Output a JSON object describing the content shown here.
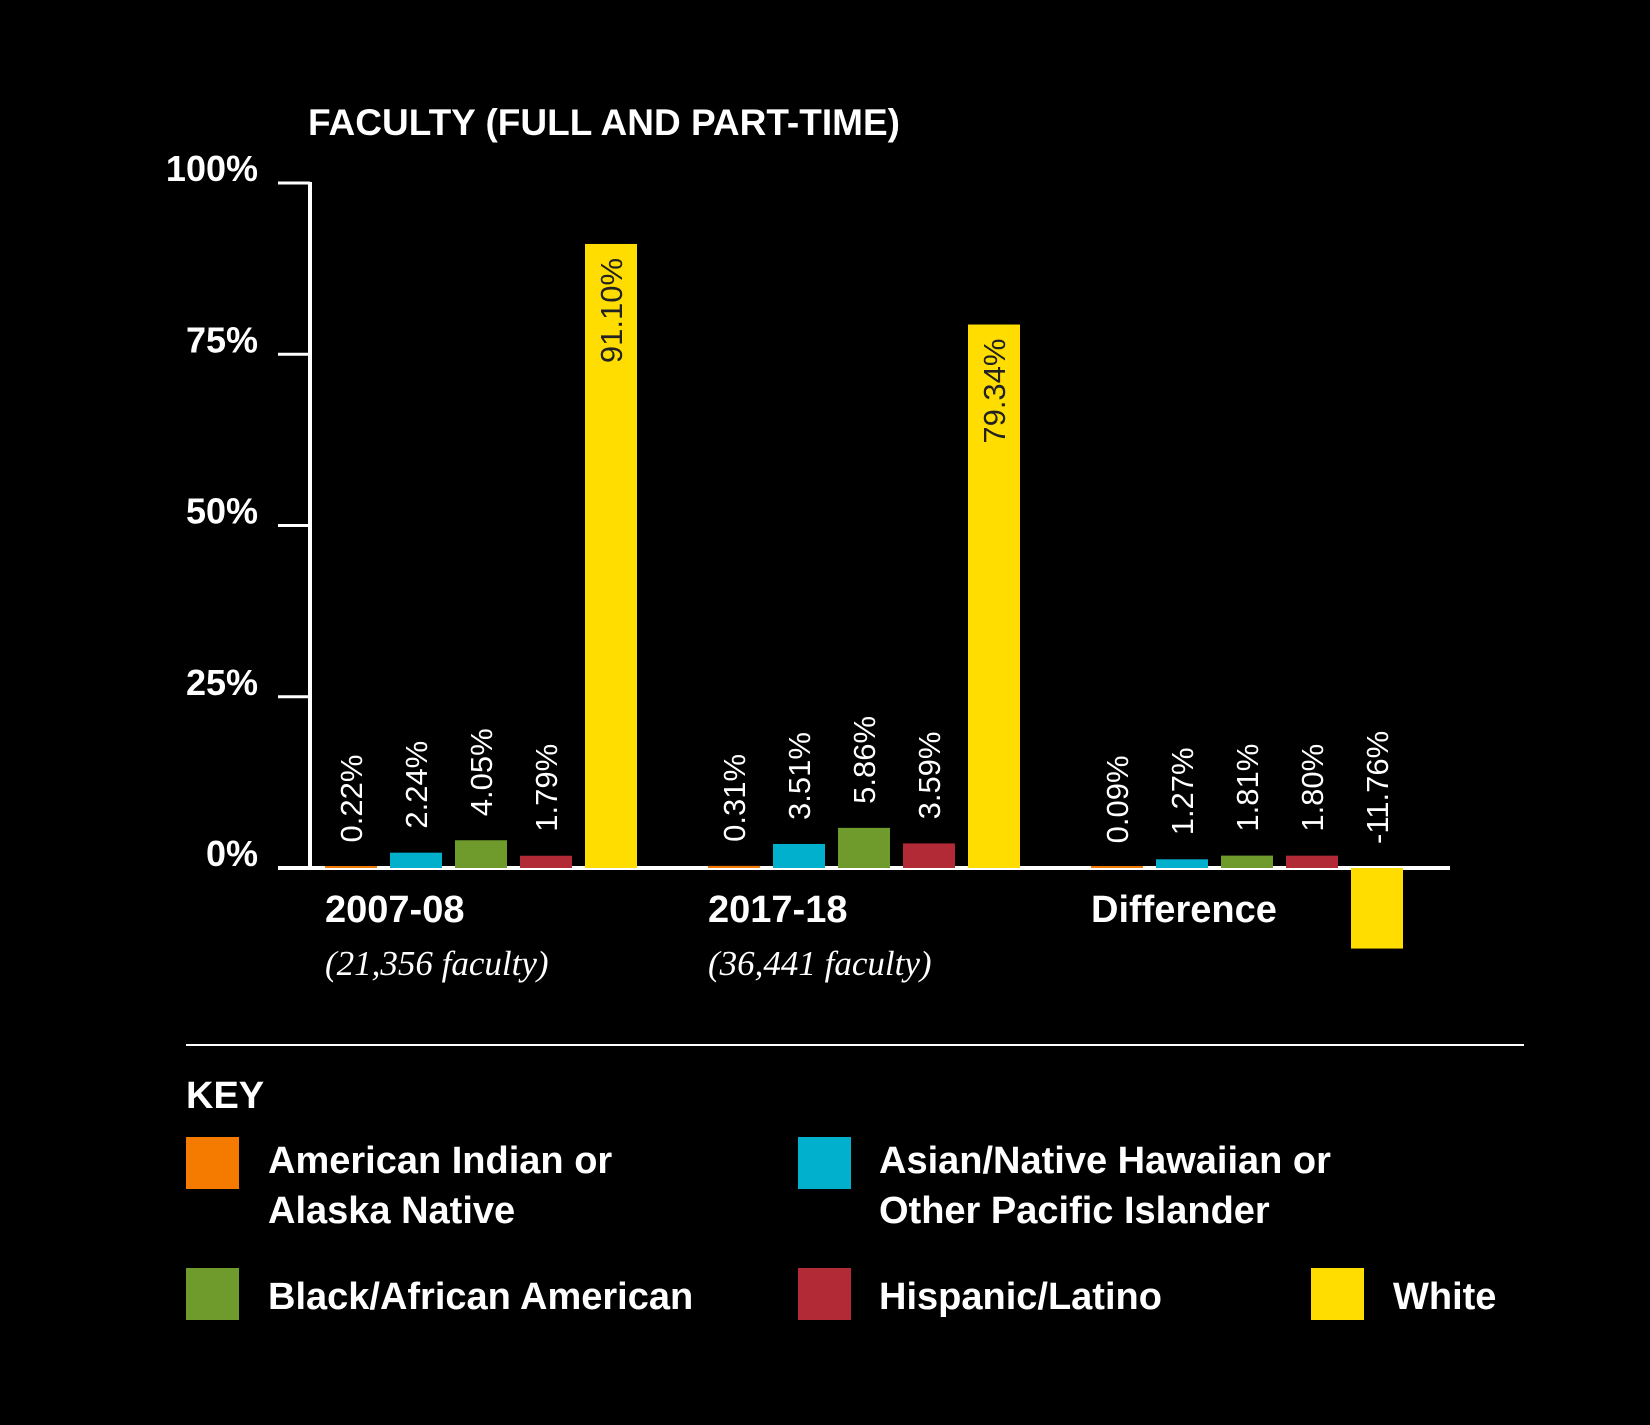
{
  "chart_data": {
    "type": "bar",
    "title": "FACULTY (FULL AND PART-TIME)",
    "ylim": [
      0,
      100
    ],
    "yticks": [
      "100%",
      "75%",
      "50%",
      "25%",
      "0%"
    ],
    "ytick_values": [
      100,
      75,
      50,
      25,
      0
    ],
    "grid": false,
    "categories": [
      "2007-08",
      "2017-18",
      "Difference"
    ],
    "category_subtitles": [
      "(21,356 faculty)",
      "(36,441 faculty)",
      ""
    ],
    "series": [
      {
        "name": "American Indian or Alaska Native",
        "color": "#f47b00",
        "values": [
          0.22,
          0.31,
          0.09
        ],
        "labels": [
          "0.22%",
          "0.31%",
          "0.09%"
        ]
      },
      {
        "name": "Asian/Native Hawaiian or Other Pacific Islander",
        "color": "#00b0cc",
        "values": [
          2.24,
          3.51,
          1.27
        ],
        "labels": [
          "2.24%",
          "3.51%",
          "1.27%"
        ]
      },
      {
        "name": "Black/African American",
        "color": "#6e9b2c",
        "values": [
          4.05,
          5.86,
          1.81
        ],
        "labels": [
          "4.05%",
          "5.86%",
          "1.81%"
        ]
      },
      {
        "name": "Hispanic/Latino",
        "color": "#b22a35",
        "values": [
          1.79,
          3.59,
          1.8
        ],
        "labels": [
          "1.79%",
          "3.59%",
          "1.80%"
        ]
      },
      {
        "name": "White",
        "color": "#ffdd00",
        "values": [
          91.1,
          79.34,
          -11.76
        ],
        "labels": [
          "91.10%",
          "79.34%",
          "-11.76%"
        ]
      }
    ],
    "legend": {
      "title": "KEY",
      "placement": "bottom",
      "entries": [
        {
          "lines": [
            "American Indian or",
            "Alaska Native"
          ],
          "color": "#f47b00"
        },
        {
          "lines": [
            "Asian/Native Hawaiian or",
            "Other Pacific Islander"
          ],
          "color": "#00b0cc"
        },
        {
          "lines": [
            "Black/African American"
          ],
          "color": "#6e9b2c"
        },
        {
          "lines": [
            "Hispanic/Latino"
          ],
          "color": "#b22a35"
        },
        {
          "lines": [
            "White"
          ],
          "color": "#ffdd00"
        }
      ]
    }
  }
}
